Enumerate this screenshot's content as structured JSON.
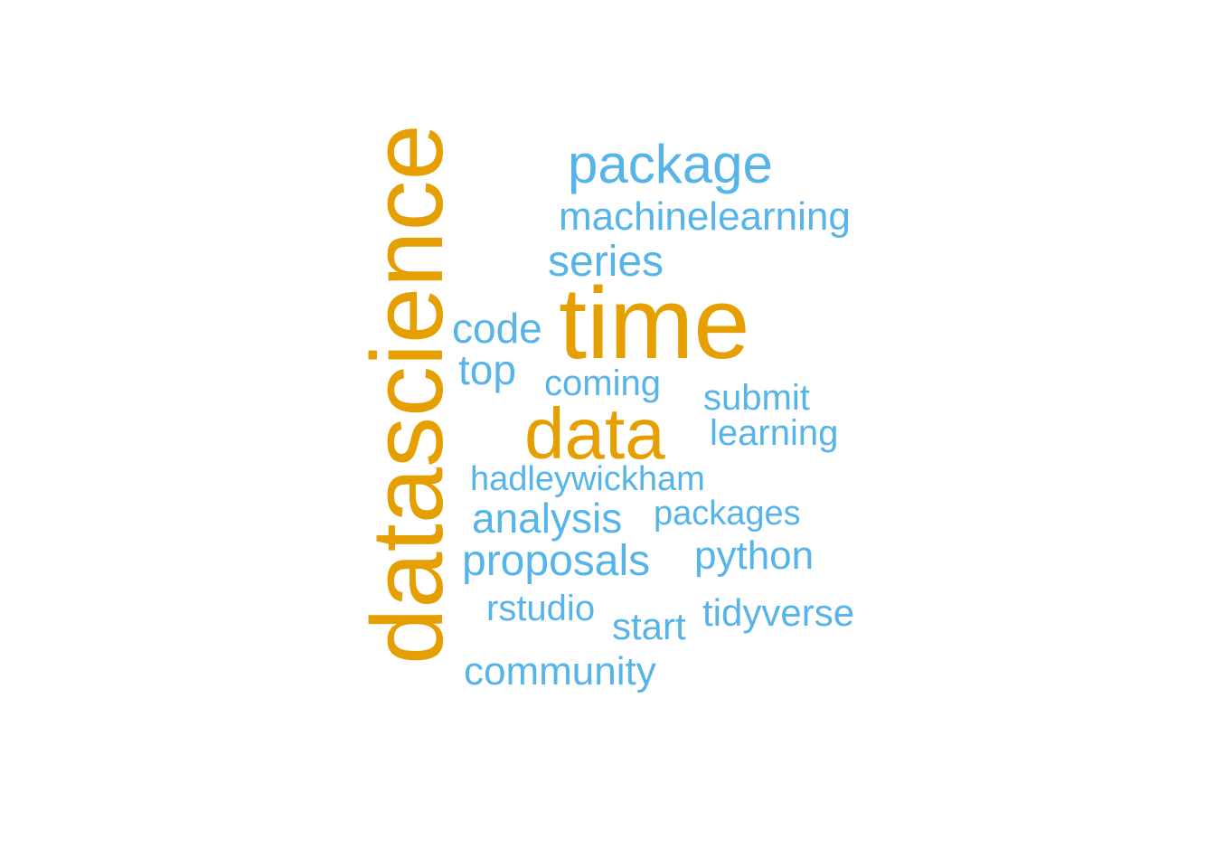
{
  "colors": {
    "major": "#E69F00",
    "minor": "#56B4E9",
    "background": "#FFFFFF"
  },
  "words": [
    {
      "text": "datascience",
      "group": "major"
    },
    {
      "text": "time",
      "group": "major"
    },
    {
      "text": "data",
      "group": "major"
    },
    {
      "text": "package",
      "group": "minor"
    },
    {
      "text": "machinelearning",
      "group": "minor"
    },
    {
      "text": "series",
      "group": "minor"
    },
    {
      "text": "code",
      "group": "minor"
    },
    {
      "text": "top",
      "group": "minor"
    },
    {
      "text": "coming",
      "group": "minor"
    },
    {
      "text": "submit",
      "group": "minor"
    },
    {
      "text": "learning",
      "group": "minor"
    },
    {
      "text": "hadleywickham",
      "group": "minor"
    },
    {
      "text": "analysis",
      "group": "minor"
    },
    {
      "text": "packages",
      "group": "minor"
    },
    {
      "text": "proposals",
      "group": "minor"
    },
    {
      "text": "python",
      "group": "minor"
    },
    {
      "text": "rstudio",
      "group": "minor"
    },
    {
      "text": "start",
      "group": "minor"
    },
    {
      "text": "tidyverse",
      "group": "minor"
    },
    {
      "text": "community",
      "group": "minor"
    }
  ]
}
